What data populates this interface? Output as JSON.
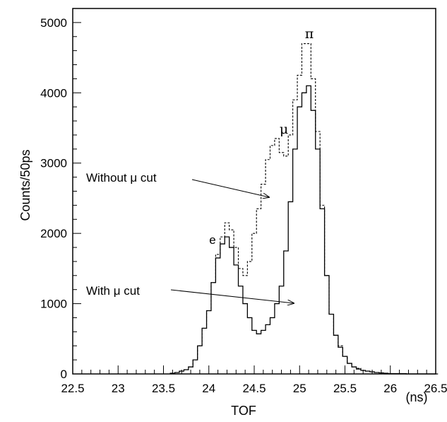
{
  "chart_data": {
    "type": "line",
    "step": true,
    "xlabel": "TOF",
    "xunit": "(ns)",
    "ylabel": "Counts/50ps",
    "xlim": [
      22.5,
      26.5
    ],
    "ylim": [
      0,
      5200
    ],
    "xticks": [
      22.5,
      23,
      23.5,
      24,
      24.5,
      25,
      25.5,
      26,
      26.5
    ],
    "xtick_labels": [
      "22.5",
      "23",
      "23.5",
      "24",
      "24.5",
      "25",
      "25.5",
      "26",
      "26.5"
    ],
    "yticks": [
      0,
      1000,
      2000,
      3000,
      4000,
      5000
    ],
    "ytick_labels": [
      "0",
      "1000",
      "2000",
      "3000",
      "4000",
      "5000"
    ],
    "grid": false,
    "bin_width_ns": 0.05,
    "series": [
      {
        "name": "Without μ cut",
        "line_style": "dashed",
        "x": [
          23.6,
          23.65,
          23.7,
          23.75,
          23.8,
          23.85,
          23.9,
          23.95,
          24.0,
          24.05,
          24.1,
          24.15,
          24.2,
          24.25,
          24.3,
          24.35,
          24.4,
          24.45,
          24.5,
          24.55,
          24.6,
          24.65,
          24.7,
          24.75,
          24.8,
          24.85,
          24.9,
          24.95,
          25.0,
          25.05,
          25.1,
          25.15,
          25.2,
          25.25,
          25.3,
          25.35,
          25.4,
          25.45,
          25.5,
          25.55,
          25.6,
          25.65,
          25.7,
          25.75,
          25.8,
          25.85,
          25.9,
          25.95,
          26.0,
          26.05,
          26.1,
          26.15,
          26.2,
          26.25,
          26.3,
          26.35,
          26.4,
          26.45,
          26.5
        ],
        "values": [
          10,
          20,
          40,
          60,
          100,
          200,
          400,
          650,
          900,
          1300,
          1700,
          1950,
          2150,
          2050,
          1800,
          1500,
          1400,
          1600,
          2000,
          2350,
          2700,
          3050,
          3250,
          3350,
          3150,
          3100,
          3400,
          3900,
          4250,
          4700,
          4700,
          4200,
          3450,
          2400,
          1400,
          850,
          550,
          400,
          250,
          150,
          100,
          80,
          50,
          40,
          30,
          20,
          15,
          10,
          5,
          5,
          5,
          5,
          0,
          0,
          0,
          0,
          0,
          0,
          0
        ]
      },
      {
        "name": "With μ cut",
        "line_style": "solid",
        "x": [
          23.6,
          23.65,
          23.7,
          23.75,
          23.8,
          23.85,
          23.9,
          23.95,
          24.0,
          24.05,
          24.1,
          24.15,
          24.2,
          24.25,
          24.3,
          24.35,
          24.4,
          24.45,
          24.5,
          24.55,
          24.6,
          24.65,
          24.7,
          24.75,
          24.8,
          24.85,
          24.9,
          24.95,
          25.0,
          25.05,
          25.1,
          25.15,
          25.2,
          25.25,
          25.3,
          25.35,
          25.4,
          25.45,
          25.5,
          25.55,
          25.6,
          25.65,
          25.7,
          25.75,
          25.8,
          25.85,
          25.9,
          25.95,
          26.0,
          26.05,
          26.1,
          26.15,
          26.2,
          26.25,
          26.3,
          26.35,
          26.4,
          26.45,
          26.5
        ],
        "values": [
          10,
          20,
          40,
          60,
          100,
          200,
          400,
          650,
          900,
          1300,
          1650,
          1850,
          1950,
          1800,
          1550,
          1250,
          1000,
          800,
          620,
          570,
          620,
          700,
          800,
          1000,
          1250,
          1750,
          2450,
          3200,
          3800,
          4000,
          4100,
          3750,
          3200,
          2350,
          1400,
          850,
          550,
          380,
          250,
          150,
          100,
          70,
          50,
          40,
          30,
          20,
          15,
          10,
          5,
          5,
          5,
          5,
          0,
          0,
          0,
          0,
          0,
          0,
          0
        ]
      }
    ],
    "annotations": [
      {
        "text": "e"
      },
      {
        "text": "μ"
      },
      {
        "text": "π"
      },
      {
        "text": "Without μ cut"
      },
      {
        "text": "With μ cut"
      }
    ]
  }
}
